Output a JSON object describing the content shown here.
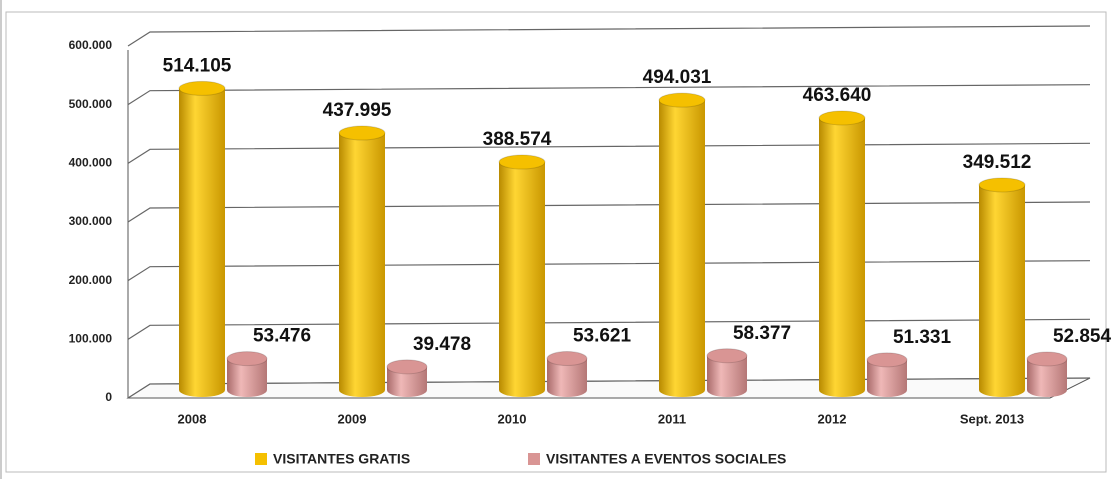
{
  "chart_data": {
    "type": "bar",
    "categories": [
      "2008",
      "2009",
      "2010",
      "2011",
      "2012",
      "Sept. 2013"
    ],
    "series": [
      {
        "name": "VISITANTES GRATIS",
        "color": "#f5c000",
        "values": [
          514105,
          437995,
          388574,
          494031,
          463640,
          349512
        ],
        "value_labels": [
          "514.105",
          "437.995",
          "388.574",
          "494.031",
          "463.640",
          "349.512"
        ]
      },
      {
        "name": "VISITANTES A EVENTOS SOCIALES",
        "color": "#d99594",
        "values": [
          53476,
          39478,
          53621,
          58377,
          51331,
          52854
        ],
        "value_labels": [
          "53.476",
          "39.478",
          "53.621",
          "58.377",
          "51.331",
          "52.854"
        ]
      }
    ],
    "ylim": [
      0,
      600000
    ],
    "yticks": [
      0,
      {
        "value": 100000,
        "label": "100.000"
      },
      {
        "value": 200000,
        "label": "200.000"
      },
      {
        "value": 300000,
        "label": "300.000"
      },
      {
        "value": 400000,
        "label": "400.000"
      },
      {
        "value": 500000,
        "label": "500.000"
      },
      {
        "value": 600000,
        "label": "600.000"
      }
    ],
    "grid": true,
    "legend": "bottom"
  }
}
